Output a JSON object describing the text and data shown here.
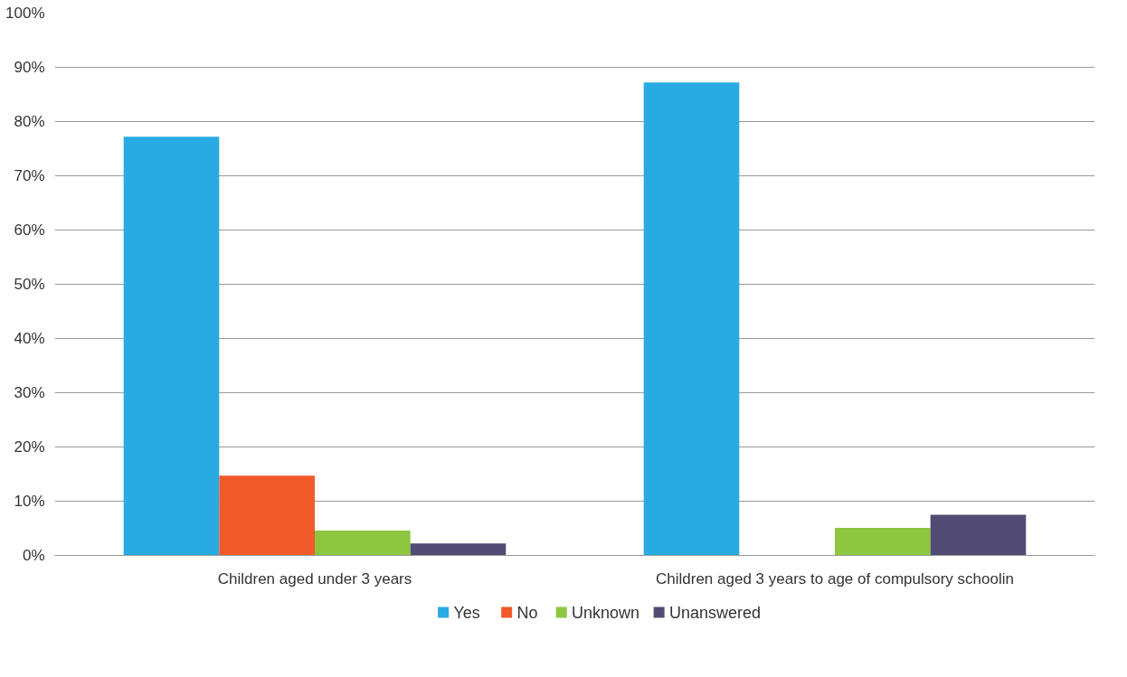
{
  "chart_data": {
    "type": "bar",
    "categories": [
      "Children aged under 3 years",
      "Children aged 3 years to age of compulsory schoolin"
    ],
    "series": [
      {
        "name": "Yes",
        "color": "#29abe2",
        "values": [
          77.2,
          87.2
        ]
      },
      {
        "name": "No",
        "color": "#f15a29",
        "values": [
          14.7,
          0
        ]
      },
      {
        "name": "Unknown",
        "color": "#8dc63f",
        "values": [
          4.6,
          5.1
        ]
      },
      {
        "name": "Unanswered",
        "color": "#524c74",
        "values": [
          2.2,
          7.5
        ]
      }
    ],
    "ylim": [
      0,
      100
    ],
    "yticks": [
      {
        "value": 0,
        "label": "0%"
      },
      {
        "value": 10,
        "label": "10%"
      },
      {
        "value": 20,
        "label": "20%"
      },
      {
        "value": 30,
        "label": "30%"
      },
      {
        "value": 40,
        "label": "40%"
      },
      {
        "value": 50,
        "label": "50%"
      },
      {
        "value": 60,
        "label": "60%"
      },
      {
        "value": 70,
        "label": "70%"
      },
      {
        "value": 80,
        "label": "80%"
      },
      {
        "value": 90,
        "label": "90%"
      },
      {
        "value": 100,
        "label": "100%"
      }
    ],
    "grid": "y",
    "legend": "bottom"
  }
}
